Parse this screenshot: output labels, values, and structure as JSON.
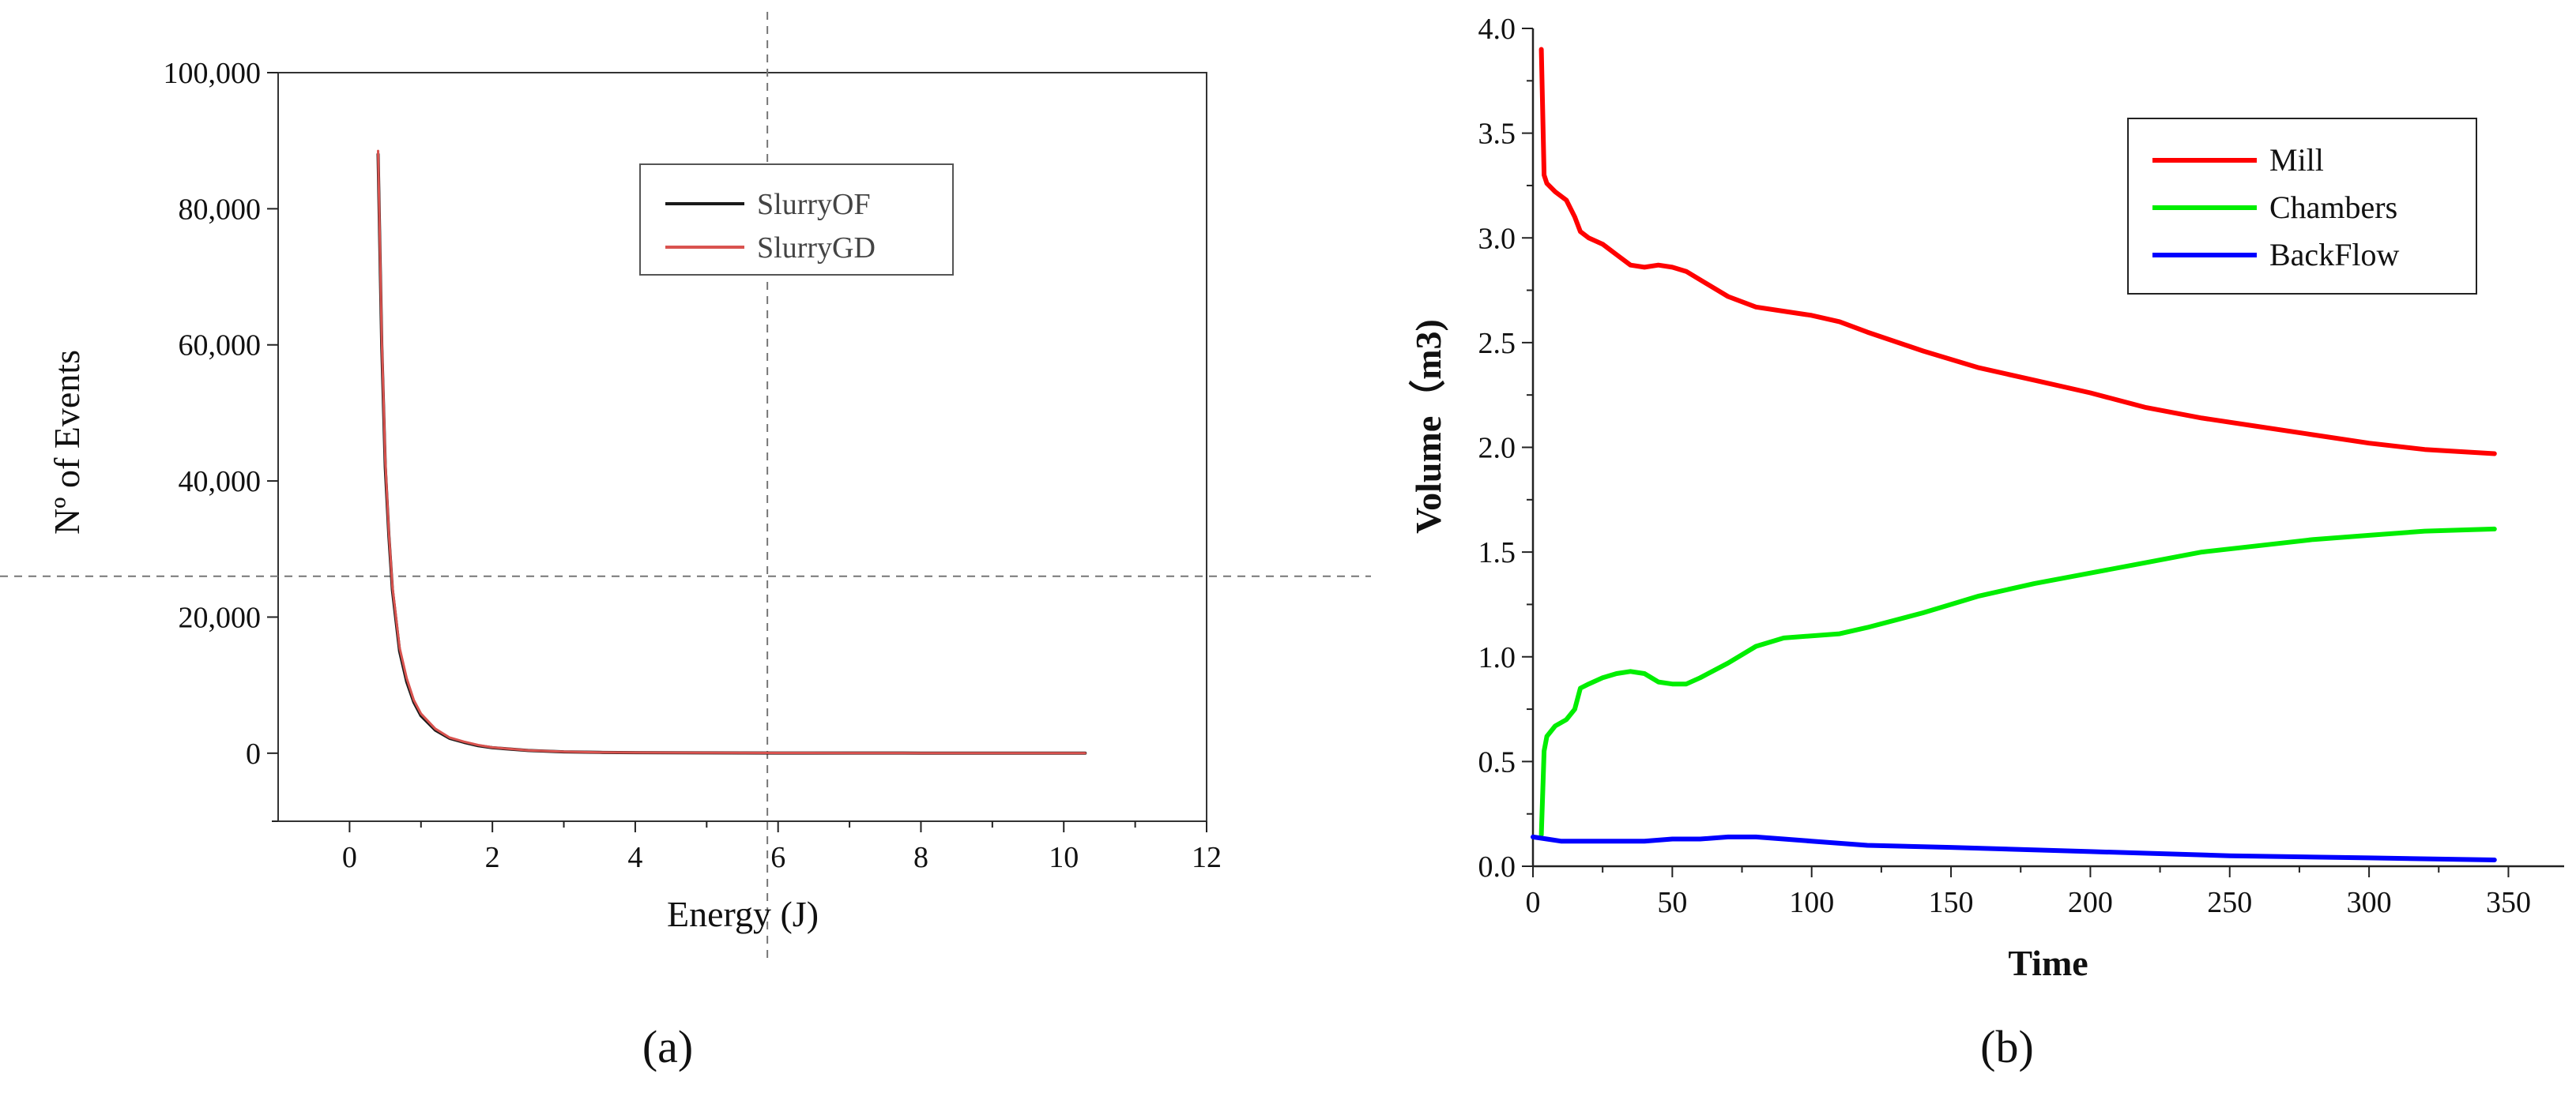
{
  "chart_data": [
    {
      "type": "line",
      "panel_label": "(a)",
      "xlabel": "Energy (J)",
      "ylabel": "Nº of Events",
      "xlim": [
        -1,
        12
      ],
      "ylim": [
        -10000,
        100000
      ],
      "x_ticks": [
        "0",
        "2",
        "4",
        "6",
        "8",
        "10",
        "12"
      ],
      "y_ticks": [
        "0",
        "20,000",
        "40,000",
        "60,000",
        "80,000",
        "100,000"
      ],
      "legend_position": "top-center",
      "grid": false,
      "crosshair": {
        "x": 5.85,
        "y": 26000
      },
      "series": [
        {
          "name": "SlurryOF",
          "color": "#1a1a1a",
          "x": [
            0.4,
            0.45,
            0.5,
            0.55,
            0.6,
            0.7,
            0.8,
            0.9,
            1.0,
            1.2,
            1.4,
            1.6,
            1.8,
            2.0,
            2.5,
            3.0,
            3.5,
            4.0,
            5.0,
            6.0,
            7.0,
            8.0,
            9.0,
            10.3
          ],
          "y": [
            88000,
            60000,
            42000,
            32000,
            24000,
            15000,
            10500,
            7500,
            5500,
            3400,
            2200,
            1600,
            1100,
            800,
            400,
            200,
            120,
            80,
            50,
            30,
            20,
            10,
            10,
            0
          ]
        },
        {
          "name": "SlurryGD",
          "color": "#d9534f",
          "x": [
            0.4,
            0.45,
            0.5,
            0.55,
            0.6,
            0.7,
            0.8,
            0.9,
            1.0,
            1.2,
            1.4,
            1.6,
            1.8,
            2.0,
            2.5,
            3.0,
            3.5,
            4.0,
            5.0,
            6.0,
            7.0,
            8.0,
            9.0,
            10.3
          ],
          "y": [
            88500,
            61000,
            43000,
            32500,
            24500,
            15500,
            11000,
            7800,
            5800,
            3600,
            2300,
            1700,
            1200,
            850,
            420,
            220,
            130,
            90,
            55,
            35,
            20,
            10,
            10,
            0
          ]
        }
      ]
    },
    {
      "type": "line",
      "panel_label": "(b)",
      "xlabel": "Time",
      "ylabel": "Volume（m3)",
      "xlim": [
        0,
        370
      ],
      "ylim": [
        0,
        4.0
      ],
      "x_ticks": [
        "0",
        "50",
        "100",
        "150",
        "200",
        "250",
        "300",
        "350"
      ],
      "y_ticks": [
        "0.0",
        "0.5",
        "1.0",
        "1.5",
        "2.0",
        "2.5",
        "3.0",
        "3.5",
        "4.0"
      ],
      "legend_position": "top-right",
      "grid": false,
      "series": [
        {
          "name": "Mill",
          "color": "#ff0000",
          "x": [
            3,
            4,
            5,
            8,
            12,
            15,
            17,
            20,
            25,
            30,
            35,
            40,
            45,
            50,
            55,
            60,
            70,
            80,
            90,
            100,
            110,
            120,
            140,
            160,
            180,
            200,
            220,
            240,
            260,
            280,
            300,
            320,
            345
          ],
          "y": [
            3.9,
            3.3,
            3.26,
            3.22,
            3.18,
            3.1,
            3.03,
            3.0,
            2.97,
            2.92,
            2.87,
            2.86,
            2.87,
            2.86,
            2.84,
            2.8,
            2.72,
            2.67,
            2.65,
            2.63,
            2.6,
            2.55,
            2.46,
            2.38,
            2.32,
            2.26,
            2.19,
            2.14,
            2.1,
            2.06,
            2.02,
            1.99,
            1.97
          ]
        },
        {
          "name": "Chambers",
          "color": "#00ee00",
          "x": [
            3,
            4,
            5,
            8,
            12,
            15,
            17,
            20,
            25,
            30,
            35,
            40,
            45,
            50,
            55,
            60,
            70,
            80,
            90,
            100,
            110,
            120,
            140,
            160,
            180,
            200,
            220,
            240,
            260,
            280,
            300,
            320,
            345
          ],
          "y": [
            0.15,
            0.55,
            0.62,
            0.67,
            0.7,
            0.75,
            0.85,
            0.87,
            0.9,
            0.92,
            0.93,
            0.92,
            0.88,
            0.87,
            0.87,
            0.9,
            0.97,
            1.05,
            1.09,
            1.1,
            1.11,
            1.14,
            1.21,
            1.29,
            1.35,
            1.4,
            1.45,
            1.5,
            1.53,
            1.56,
            1.58,
            1.6,
            1.61
          ]
        },
        {
          "name": "BackFlow",
          "color": "#0000ff",
          "x": [
            0,
            5,
            10,
            20,
            30,
            40,
            50,
            60,
            70,
            80,
            90,
            100,
            120,
            150,
            200,
            250,
            300,
            345
          ],
          "y": [
            0.14,
            0.13,
            0.12,
            0.12,
            0.12,
            0.12,
            0.13,
            0.13,
            0.14,
            0.14,
            0.13,
            0.12,
            0.1,
            0.09,
            0.07,
            0.05,
            0.04,
            0.03
          ]
        }
      ]
    }
  ]
}
